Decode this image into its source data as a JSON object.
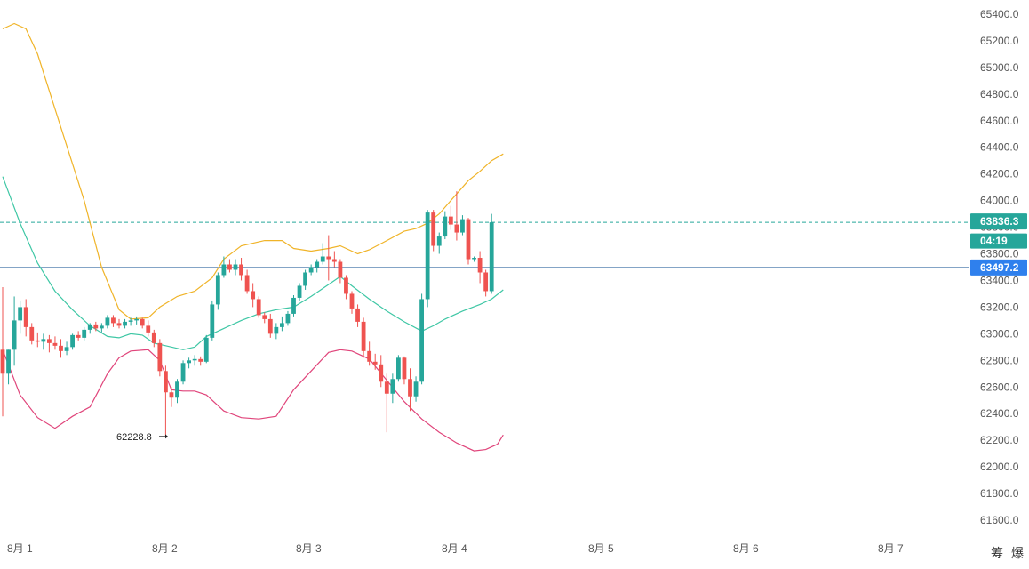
{
  "chart_data": {
    "type": "candlestick",
    "y_axis": {
      "range": [
        61450,
        65500
      ],
      "ticks": [
        "65400.0",
        "65200.0",
        "65000.0",
        "64800.0",
        "64600.0",
        "64400.0",
        "64200.0",
        "64000.0",
        "63800.0",
        "63600.0",
        "63400.0",
        "63200.0",
        "63000.0",
        "62800.0",
        "62600.0",
        "62400.0",
        "62200.0",
        "62000.0",
        "61800.0",
        "61600.0"
      ]
    },
    "x_axis": {
      "labels": [
        "8月 1",
        "8月 2",
        "8月 3",
        "8月 4",
        "8月 5",
        "8月 6",
        "8月 7"
      ]
    },
    "price_labels": {
      "last_price": "63836.3",
      "countdown": "04:19",
      "crosshair_price": "63497.2"
    },
    "annotations": {
      "low_label": "62228.8"
    },
    "candles": [
      [
        62880,
        63350,
        62380,
        62700
      ],
      [
        62700,
        62880,
        62620,
        62880
      ],
      [
        62880,
        63280,
        62760,
        63100
      ],
      [
        63100,
        63250,
        63000,
        63200
      ],
      [
        63200,
        63260,
        62980,
        63050
      ],
      [
        63050,
        63080,
        62920,
        62950
      ],
      [
        62950,
        63010,
        62900,
        62940
      ],
      [
        62940,
        63000,
        62880,
        62960
      ],
      [
        62960,
        62990,
        62860,
        62930
      ],
      [
        62930,
        62980,
        62880,
        62910
      ],
      [
        62910,
        62960,
        62820,
        62870
      ],
      [
        62870,
        62940,
        62840,
        62900
      ],
      [
        62900,
        63000,
        62880,
        62990
      ],
      [
        62990,
        63020,
        62950,
        62970
      ],
      [
        62970,
        63050,
        62950,
        63030
      ],
      [
        63030,
        63080,
        63000,
        63070
      ],
      [
        63070,
        63090,
        63020,
        63040
      ],
      [
        63040,
        63080,
        63010,
        63060
      ],
      [
        63060,
        63140,
        63040,
        63120
      ],
      [
        63120,
        63140,
        63050,
        63080
      ],
      [
        63080,
        63110,
        63040,
        63060
      ],
      [
        63060,
        63110,
        63040,
        63090
      ],
      [
        63090,
        63120,
        63060,
        63100
      ],
      [
        63100,
        63130,
        63070,
        63110
      ],
      [
        63110,
        63120,
        63040,
        63060
      ],
      [
        63060,
        63100,
        62980,
        63010
      ],
      [
        63010,
        63030,
        62900,
        62930
      ],
      [
        62930,
        62960,
        62680,
        62720
      ],
      [
        62720,
        62760,
        62228.8,
        62560
      ],
      [
        62560,
        62600,
        62450,
        62520
      ],
      [
        62520,
        62660,
        62480,
        62640
      ],
      [
        62640,
        62800,
        62620,
        62780
      ],
      [
        62780,
        62820,
        62740,
        62800
      ],
      [
        62800,
        62840,
        62760,
        62810
      ],
      [
        62810,
        62830,
        62760,
        62790
      ],
      [
        62790,
        62990,
        62780,
        62970
      ],
      [
        62970,
        63250,
        62950,
        63220
      ],
      [
        63220,
        63460,
        63180,
        63440
      ],
      [
        63440,
        63580,
        63420,
        63520
      ],
      [
        63520,
        63560,
        63460,
        63480
      ],
      [
        63480,
        63560,
        63440,
        63520
      ],
      [
        63520,
        63570,
        63400,
        63440
      ],
      [
        63440,
        63480,
        63300,
        63320
      ],
      [
        63320,
        63380,
        63200,
        63260
      ],
      [
        63260,
        63280,
        63120,
        63140
      ],
      [
        63140,
        63160,
        63080,
        63110
      ],
      [
        63110,
        63150,
        62970,
        63000
      ],
      [
        63000,
        63080,
        62960,
        63050
      ],
      [
        63050,
        63130,
        63020,
        63080
      ],
      [
        63080,
        63170,
        63060,
        63150
      ],
      [
        63150,
        63290,
        63130,
        63270
      ],
      [
        63270,
        63380,
        63250,
        63360
      ],
      [
        63360,
        63480,
        63330,
        63460
      ],
      [
        63460,
        63520,
        63440,
        63500
      ],
      [
        63500,
        63560,
        63460,
        63540
      ],
      [
        63540,
        63680,
        63520,
        63580
      ],
      [
        63580,
        63740,
        63400,
        63560
      ],
      [
        63560,
        63620,
        63500,
        63540
      ],
      [
        63540,
        63560,
        63380,
        63420
      ],
      [
        63420,
        63440,
        63260,
        63300
      ],
      [
        63300,
        63320,
        63150,
        63190
      ],
      [
        63190,
        63220,
        63050,
        63090
      ],
      [
        63090,
        63120,
        62820,
        62870
      ],
      [
        62870,
        62940,
        62760,
        62790
      ],
      [
        62790,
        62850,
        62730,
        62770
      ],
      [
        62770,
        62840,
        62600,
        62640
      ],
      [
        62640,
        62700,
        62260,
        62550
      ],
      [
        62550,
        62700,
        62480,
        62660
      ],
      [
        62660,
        62840,
        62640,
        62820
      ],
      [
        62820,
        62830,
        62620,
        62660
      ],
      [
        62660,
        62740,
        62420,
        62530
      ],
      [
        62530,
        62680,
        62490,
        62640
      ],
      [
        62640,
        63300,
        62620,
        63260
      ],
      [
        63260,
        63930,
        63200,
        63910
      ],
      [
        63910,
        63930,
        63620,
        63660
      ],
      [
        63660,
        63760,
        63600,
        63730
      ],
      [
        63730,
        63920,
        63710,
        63880
      ],
      [
        63880,
        63960,
        63780,
        63820
      ],
      [
        63820,
        64070,
        63700,
        63760
      ],
      [
        63760,
        63890,
        63740,
        63860
      ],
      [
        63860,
        63870,
        63520,
        63560
      ],
      [
        63560,
        63580,
        63540,
        63570
      ],
      [
        63570,
        63620,
        63380,
        63460
      ],
      [
        63460,
        63480,
        63280,
        63320
      ],
      [
        63320,
        63900,
        63300,
        63836.3
      ]
    ],
    "bollinger": {
      "upper": [
        [
          0,
          65290
        ],
        [
          2,
          65330
        ],
        [
          4,
          65290
        ],
        [
          6,
          65100
        ],
        [
          10,
          64550
        ],
        [
          14,
          64000
        ],
        [
          17,
          63500
        ],
        [
          20,
          63180
        ],
        [
          22,
          63110
        ],
        [
          25,
          63120
        ],
        [
          27,
          63200
        ],
        [
          30,
          63280
        ],
        [
          33,
          63320
        ],
        [
          36,
          63420
        ],
        [
          38,
          63560
        ],
        [
          41,
          63660
        ],
        [
          45,
          63700
        ],
        [
          48,
          63700
        ],
        [
          50,
          63640
        ],
        [
          53,
          63620
        ],
        [
          56,
          63640
        ],
        [
          58,
          63660
        ],
        [
          61,
          63600
        ],
        [
          63,
          63630
        ],
        [
          66,
          63700
        ],
        [
          69,
          63770
        ],
        [
          71,
          63790
        ],
        [
          73,
          63830
        ],
        [
          75,
          63900
        ],
        [
          77,
          64000
        ],
        [
          80,
          64150
        ],
        [
          82,
          64220
        ],
        [
          84,
          64300
        ],
        [
          86,
          64350
        ]
      ],
      "middle": [
        [
          0,
          64180
        ],
        [
          3,
          63830
        ],
        [
          6,
          63530
        ],
        [
          9,
          63320
        ],
        [
          12,
          63180
        ],
        [
          15,
          63060
        ],
        [
          18,
          62980
        ],
        [
          20,
          62970
        ],
        [
          22,
          63000
        ],
        [
          24,
          62990
        ],
        [
          26,
          62930
        ],
        [
          28,
          62910
        ],
        [
          31,
          62880
        ],
        [
          33,
          62900
        ],
        [
          35,
          62980
        ],
        [
          38,
          63040
        ],
        [
          41,
          63100
        ],
        [
          44,
          63150
        ],
        [
          47,
          63180
        ],
        [
          50,
          63200
        ],
        [
          53,
          63280
        ],
        [
          56,
          63370
        ],
        [
          58,
          63430
        ],
        [
          60,
          63360
        ],
        [
          63,
          63260
        ],
        [
          66,
          63170
        ],
        [
          69,
          63090
        ],
        [
          72,
          63020
        ],
        [
          74,
          63060
        ],
        [
          76,
          63110
        ],
        [
          79,
          63170
        ],
        [
          82,
          63220
        ],
        [
          84,
          63260
        ],
        [
          86,
          63330
        ]
      ],
      "lower": [
        [
          0,
          62880
        ],
        [
          3,
          62540
        ],
        [
          6,
          62370
        ],
        [
          9,
          62290
        ],
        [
          12,
          62380
        ],
        [
          15,
          62450
        ],
        [
          18,
          62700
        ],
        [
          20,
          62820
        ],
        [
          22,
          62870
        ],
        [
          25,
          62880
        ],
        [
          27,
          62800
        ],
        [
          29,
          62580
        ],
        [
          31,
          62570
        ],
        [
          33,
          62570
        ],
        [
          35,
          62540
        ],
        [
          38,
          62420
        ],
        [
          41,
          62370
        ],
        [
          44,
          62360
        ],
        [
          47,
          62380
        ],
        [
          50,
          62580
        ],
        [
          53,
          62720
        ],
        [
          56,
          62860
        ],
        [
          58,
          62880
        ],
        [
          60,
          62870
        ],
        [
          63,
          62810
        ],
        [
          66,
          62650
        ],
        [
          69,
          62490
        ],
        [
          72,
          62360
        ],
        [
          75,
          62260
        ],
        [
          78,
          62180
        ],
        [
          81,
          62120
        ],
        [
          83,
          62130
        ],
        [
          85,
          62170
        ],
        [
          86,
          62240
        ]
      ]
    },
    "colors": {
      "up": "#26a69a",
      "down": "#ef5350",
      "upper_band": "#f0b429",
      "middle_band": "#3fc7a5",
      "lower_band": "#e0457b",
      "last_price_bg": "#26a69a",
      "crosshair_bg": "#2f80ed",
      "crosshair_line": "#3b6ea5"
    }
  },
  "corner_buttons": {
    "left": "筹",
    "right": "爆"
  }
}
